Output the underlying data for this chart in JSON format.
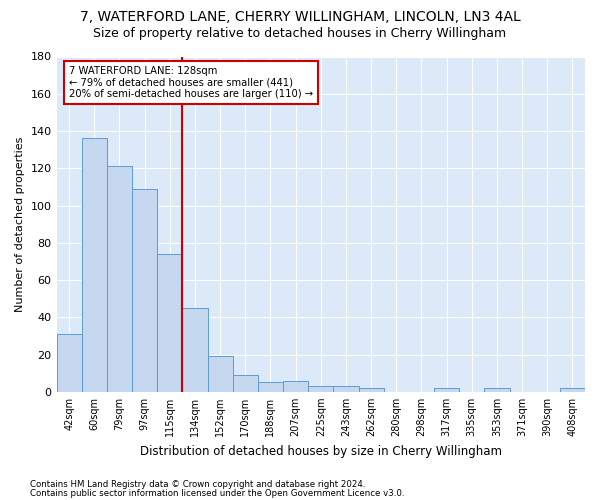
{
  "title1": "7, WATERFORD LANE, CHERRY WILLINGHAM, LINCOLN, LN3 4AL",
  "title2": "Size of property relative to detached houses in Cherry Willingham",
  "xlabel": "Distribution of detached houses by size in Cherry Willingham",
  "ylabel": "Number of detached properties",
  "footnote1": "Contains HM Land Registry data © Crown copyright and database right 2024.",
  "footnote2": "Contains public sector information licensed under the Open Government Licence v3.0.",
  "categories": [
    "42sqm",
    "60sqm",
    "79sqm",
    "97sqm",
    "115sqm",
    "134sqm",
    "152sqm",
    "170sqm",
    "188sqm",
    "207sqm",
    "225sqm",
    "243sqm",
    "262sqm",
    "280sqm",
    "298sqm",
    "317sqm",
    "335sqm",
    "353sqm",
    "371sqm",
    "390sqm",
    "408sqm"
  ],
  "values": [
    31,
    136,
    121,
    109,
    74,
    45,
    19,
    9,
    5,
    6,
    3,
    3,
    2,
    0,
    0,
    2,
    0,
    2,
    0,
    0,
    2
  ],
  "bar_color": "#c5d8f0",
  "bar_edge_color": "#5b9bd5",
  "annotation_line1": "7 WATERFORD LANE: 128sqm",
  "annotation_line2": "← 79% of detached houses are smaller (441)",
  "annotation_line3": "20% of semi-detached houses are larger (110) →",
  "red_line_color": "#cc0000",
  "annotation_box_color": "#ffffff",
  "annotation_box_edge": "#cc0000",
  "ylim": [
    0,
    180
  ],
  "yticks": [
    0,
    20,
    40,
    60,
    80,
    100,
    120,
    140,
    160,
    180
  ],
  "fig_bg_color": "#ffffff",
  "plot_bg": "#dce9f8",
  "grid_color": "#ffffff",
  "title1_fontsize": 10,
  "title2_fontsize": 9,
  "red_line_bar_index": 4.5
}
